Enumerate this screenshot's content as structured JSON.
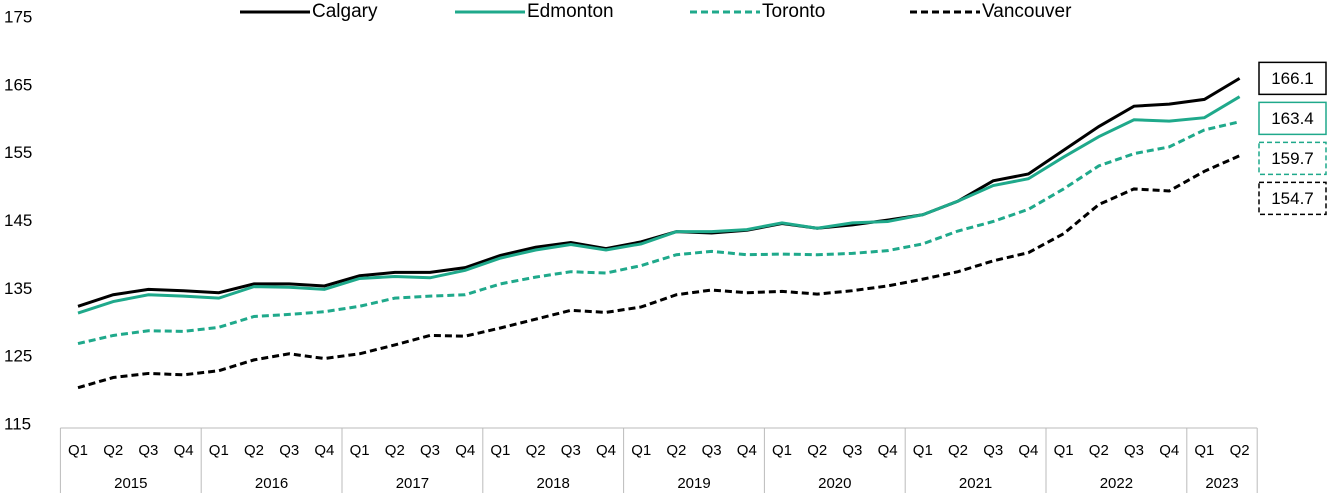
{
  "chart_data": {
    "type": "line",
    "categories": [
      "Q1",
      "Q2",
      "Q3",
      "Q4",
      "Q1",
      "Q2",
      "Q3",
      "Q4",
      "Q1",
      "Q2",
      "Q3",
      "Q4",
      "Q1",
      "Q2",
      "Q3",
      "Q4",
      "Q1",
      "Q2",
      "Q3",
      "Q4",
      "Q1",
      "Q2",
      "Q3",
      "Q4",
      "Q1",
      "Q2",
      "Q3",
      "Q4",
      "Q1",
      "Q2",
      "Q3",
      "Q4",
      "Q1",
      "Q2"
    ],
    "years": [
      "2015",
      "2016",
      "2017",
      "2018",
      "2019",
      "2020",
      "2021",
      "2022",
      "2023"
    ],
    "ylim": [
      115,
      175
    ],
    "yticks": [
      115,
      125,
      135,
      145,
      155,
      165,
      175
    ],
    "grid": false,
    "legend": "top",
    "series": [
      {
        "name": "Calgary",
        "color": "#000000",
        "dashed": false,
        "values": [
          132.5,
          134.2,
          135.0,
          134.8,
          134.5,
          135.8,
          135.8,
          135.5,
          137.0,
          137.5,
          137.5,
          138.2,
          140.0,
          141.2,
          141.9,
          141.0,
          142.0,
          143.5,
          143.3,
          143.7,
          144.7,
          144.0,
          144.5,
          145.2,
          146.0,
          148.0,
          151.0,
          152.0,
          155.5,
          159.0,
          162.0,
          162.3,
          163.0,
          166.1
        ]
      },
      {
        "name": "Edmonton",
        "color": "#1fa98b",
        "dashed": false,
        "values": [
          131.5,
          133.2,
          134.2,
          134.0,
          133.7,
          135.4,
          135.3,
          135.0,
          136.6,
          136.9,
          136.7,
          137.8,
          139.6,
          140.8,
          141.6,
          140.8,
          141.7,
          143.5,
          143.5,
          143.8,
          144.8,
          144.0,
          144.8,
          145.0,
          146.0,
          148.0,
          150.3,
          151.3,
          154.5,
          157.5,
          160.0,
          159.8,
          160.3,
          163.4
        ]
      },
      {
        "name": "Toronto",
        "color": "#1fa98b",
        "dashed": true,
        "values": [
          127.0,
          128.2,
          128.9,
          128.8,
          129.4,
          131.0,
          131.3,
          131.7,
          132.5,
          133.7,
          134.0,
          134.2,
          135.8,
          136.8,
          137.6,
          137.4,
          138.5,
          140.1,
          140.6,
          140.1,
          140.2,
          140.1,
          140.3,
          140.7,
          141.7,
          143.6,
          145.0,
          146.8,
          149.8,
          153.2,
          155.0,
          156.0,
          158.5,
          159.7
        ]
      },
      {
        "name": "Vancouver",
        "color": "#000000",
        "dashed": true,
        "values": [
          120.5,
          122.0,
          122.6,
          122.4,
          123.0,
          124.6,
          125.5,
          124.8,
          125.5,
          126.8,
          128.2,
          128.1,
          129.3,
          130.6,
          131.9,
          131.6,
          132.4,
          134.2,
          134.9,
          134.5,
          134.7,
          134.3,
          134.8,
          135.5,
          136.5,
          137.6,
          139.2,
          140.4,
          143.2,
          147.5,
          149.8,
          149.5,
          152.4,
          154.7
        ]
      }
    ]
  }
}
